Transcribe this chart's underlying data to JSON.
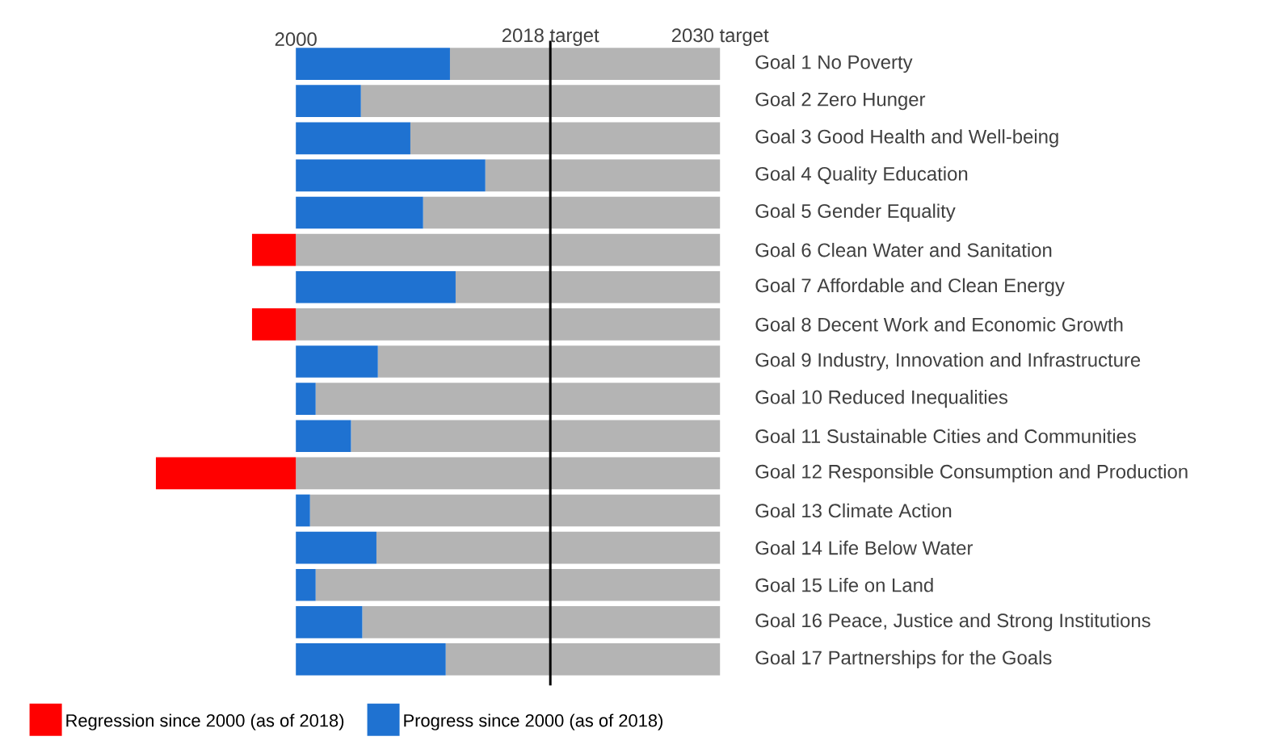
{
  "chart_data": {
    "type": "bar",
    "orientation": "horizontal",
    "categories": [
      "Goal 1 No Poverty",
      "Goal 2 Zero Hunger",
      "Goal 3 Good Health and Well-being",
      "Goal 4 Quality Education",
      "Goal 5 Gender Equality",
      "Goal 6 Clean Water and Sanitation",
      "Goal 7 Affordable and Clean Energy",
      "Goal 8 Decent Work and Economic Growth",
      "Goal 9 Industry, Innovation and Infrastructure",
      "Goal 10 Reduced Inequalities",
      "Goal 11 Sustainable Cities and Communities",
      "Goal 12 Responsible Consumption and Production",
      "Goal 13 Climate Action",
      "Goal 14 Life Below Water",
      "Goal 15 Life on Land",
      "Goal 16 Peace, Justice and Strong Institutions",
      "Goal 17 Partnerships for the Goals"
    ],
    "series": [
      {
        "color": "#b4b4b4",
        "values": [
          19.1,
          25.4,
          21.9,
          16.6,
          21.0,
          30,
          18.7,
          30,
          24.2,
          28.6,
          26.1,
          30,
          29.0,
          24.3,
          28.6,
          25.3,
          19.4
        ],
        "base": [
          2010.9,
          2004.6,
          2008.1,
          2013.4,
          2009.0,
          2000,
          2011.3,
          2000,
          2005.8,
          2001.4,
          2003.9,
          2000,
          2001.0,
          2005.7,
          2001.4,
          2004.7,
          2010.6
        ]
      },
      {
        "name": "Regression since 2000 (as of 2018)",
        "color": "#ff0000",
        "values": [
          null,
          null,
          null,
          null,
          null,
          -3.1,
          null,
          -3.1,
          null,
          null,
          null,
          -9.9,
          null,
          null,
          null,
          null,
          null
        ],
        "base": [
          null,
          null,
          null,
          null,
          null,
          2000,
          null,
          2000,
          null,
          null,
          null,
          2000,
          null,
          null,
          null,
          null,
          null
        ]
      },
      {
        "name": "Progress since 2000 (as of 2018)",
        "color": "#1f72d1",
        "values": [
          10.9,
          4.6,
          8.1,
          13.4,
          9.0,
          null,
          11.3,
          null,
          5.8,
          1.4,
          3.9,
          null,
          1.0,
          5.7,
          1.4,
          4.7,
          10.6
        ],
        "base": [
          2000,
          2000,
          2000,
          2000,
          2000,
          null,
          2000,
          null,
          2000,
          2000,
          2000,
          null,
          2000,
          2000,
          2000,
          2000,
          2000
        ]
      }
    ],
    "xlim": [
      1990,
      2030
    ],
    "xticks": [
      2000,
      {
        "value": 2018,
        "label": "2018 target"
      },
      {
        "value": 2030,
        "label": "2030 target"
      }
    ],
    "ref_lines": [
      {
        "axis": "x",
        "value": 2018,
        "color": "#000000"
      }
    ],
    "legend": "bottom left"
  }
}
